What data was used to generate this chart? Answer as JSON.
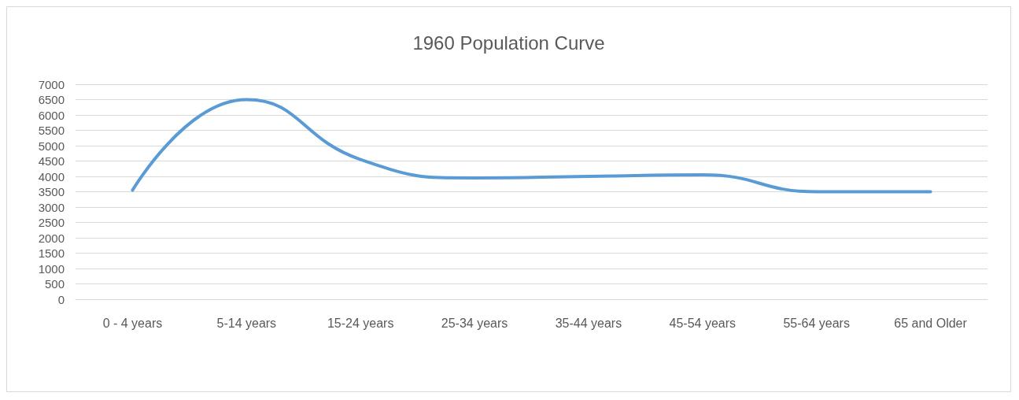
{
  "chart_data": {
    "type": "line",
    "title": "1960 Population Curve",
    "categories": [
      "0 - 4 years",
      "5-14 years",
      "15-24 years",
      "25-34 years",
      "35-44 years",
      "45-54 years",
      "55-64 years",
      "65 and Older"
    ],
    "series": [
      {
        "color": "#5b9bd5",
        "values": [
          3550,
          6500,
          4550,
          3950,
          4000,
          4050,
          3500,
          3500
        ]
      }
    ],
    "ylim": [
      0,
      7000
    ],
    "yticks": [
      0,
      500,
      1000,
      1500,
      2000,
      2500,
      3000,
      3500,
      4000,
      4500,
      5000,
      5500,
      6000,
      6500,
      7000
    ],
    "grid": "y",
    "marker": "none",
    "line_style": "solid"
  }
}
